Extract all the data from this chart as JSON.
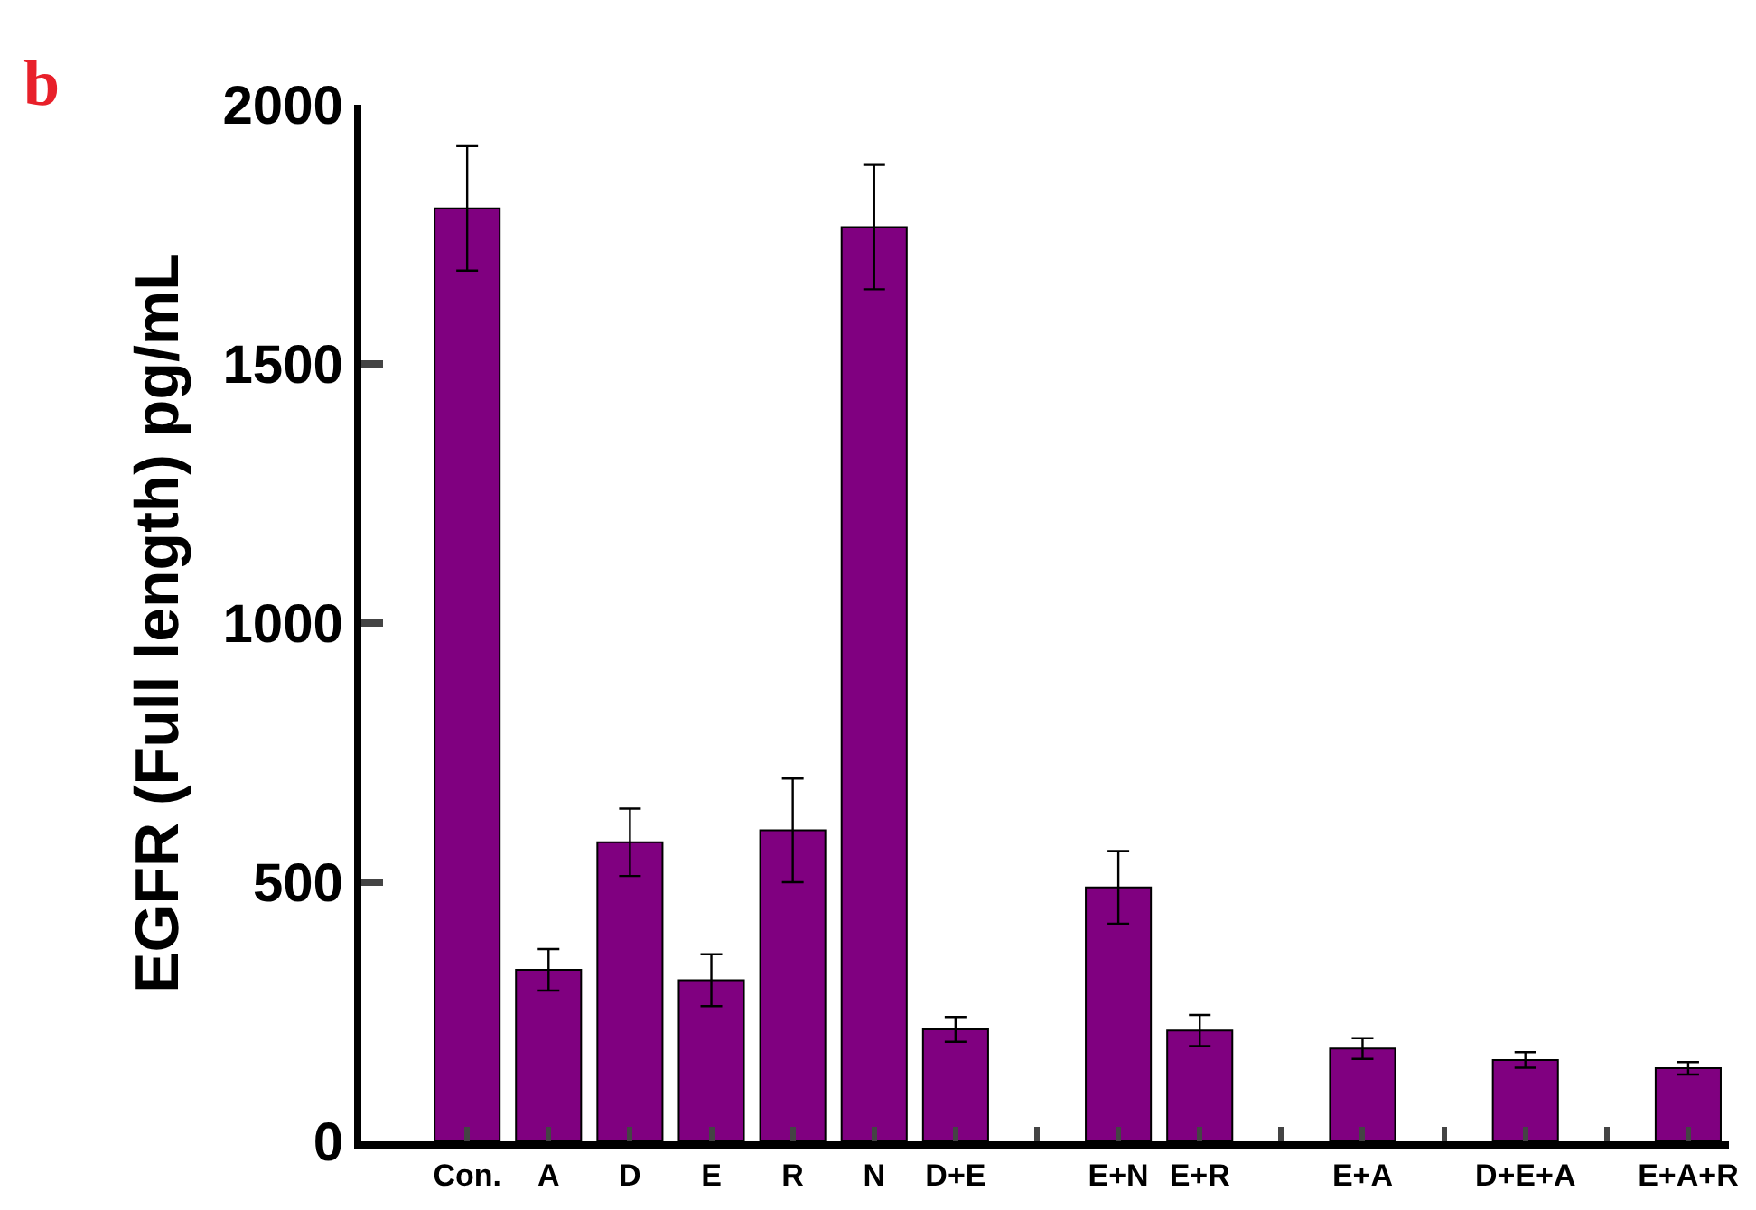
{
  "chart_data": {
    "type": "bar",
    "ylabel": "EGFR (Full length) pg/mL",
    "annotations": [
      "b"
    ],
    "categories": [
      "Con.",
      "A",
      "D",
      "E",
      "R",
      "N",
      "D+E",
      null,
      "E+N",
      "E+R",
      null,
      "E+A",
      null,
      "D+E+A",
      null,
      "E+A+R"
    ],
    "values": [
      1800,
      331,
      577,
      311,
      600,
      1764,
      216,
      null,
      490,
      214,
      null,
      179,
      null,
      157,
      null,
      141
    ],
    "errors": [
      120,
      40,
      65,
      50,
      100,
      120,
      24,
      null,
      70,
      30,
      null,
      20,
      null,
      15,
      null,
      12
    ],
    "color": "#800080",
    "ylim": [
      0,
      2000
    ],
    "yticks": [
      0,
      500,
      1000,
      1500,
      2000
    ]
  }
}
